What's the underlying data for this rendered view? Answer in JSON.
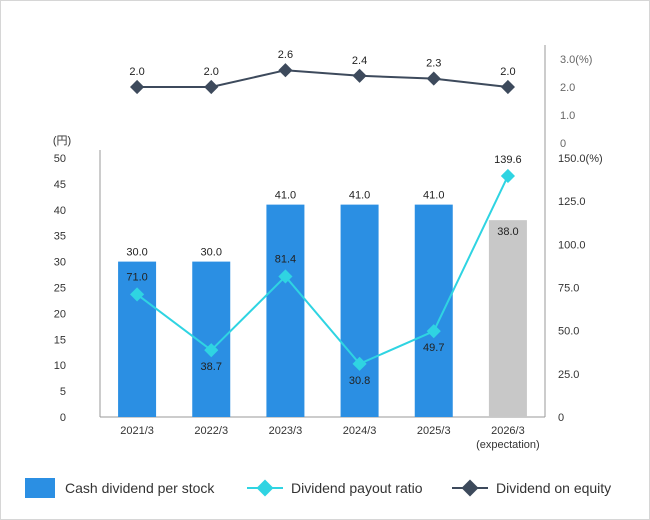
{
  "chart_data": {
    "type": "bar",
    "categories": [
      "2021/3",
      "2022/3",
      "2023/3",
      "2024/3",
      "2025/3",
      "2026/3"
    ],
    "category_notes": [
      "",
      "",
      "",
      "",
      "",
      "(expectation)"
    ],
    "left_axis": {
      "unit": "(円)",
      "range": [
        0,
        50
      ],
      "ticks": [
        "0",
        "5",
        "10",
        "15",
        "20",
        "25",
        "30",
        "35",
        "40",
        "45",
        "50"
      ]
    },
    "right_axis_payout": {
      "unit": "(%)",
      "range": [
        0,
        150
      ],
      "ticks": [
        "0",
        "25.0",
        "50.0",
        "75.0",
        "100.0",
        "125.0",
        "150.0"
      ]
    },
    "right_axis_doe": {
      "unit": "(%)",
      "range": [
        0,
        3
      ],
      "ticks": [
        "0",
        "1.0",
        "2.0",
        "3.0"
      ]
    },
    "series": [
      {
        "name": "Cash dividend per stock",
        "kind": "bar",
        "axis": "left",
        "values": [
          30.0,
          30.0,
          41.0,
          41.0,
          41.0,
          38.0
        ],
        "labels": [
          "30.0",
          "30.0",
          "41.0",
          "41.0",
          "41.0",
          "38.0"
        ],
        "colors": [
          "#2b8fe3",
          "#2b8fe3",
          "#2b8fe3",
          "#2b8fe3",
          "#2b8fe3",
          "#c8c8c8"
        ]
      },
      {
        "name": "Dividend payout ratio",
        "kind": "line",
        "axis": "right_payout",
        "values": [
          71.0,
          38.7,
          81.4,
          30.8,
          49.7,
          139.6
        ],
        "labels": [
          "71.0",
          "38.7",
          "81.4",
          "30.8",
          "49.7",
          "139.6"
        ],
        "color": "#2fd4e2"
      },
      {
        "name": "Dividend on equity",
        "kind": "line",
        "axis": "right_doe",
        "values": [
          2.0,
          2.0,
          2.6,
          2.4,
          2.3,
          2.0
        ],
        "labels": [
          "2.0",
          "2.0",
          "2.6",
          "2.4",
          "2.3",
          "2.0"
        ],
        "color": "#3d4a5c"
      }
    ],
    "grid": false,
    "legend_position": "bottom"
  },
  "legend": {
    "bar_label": "Cash dividend per stock",
    "payout_label": "Dividend payout ratio",
    "doe_label": "Dividend on equity"
  }
}
